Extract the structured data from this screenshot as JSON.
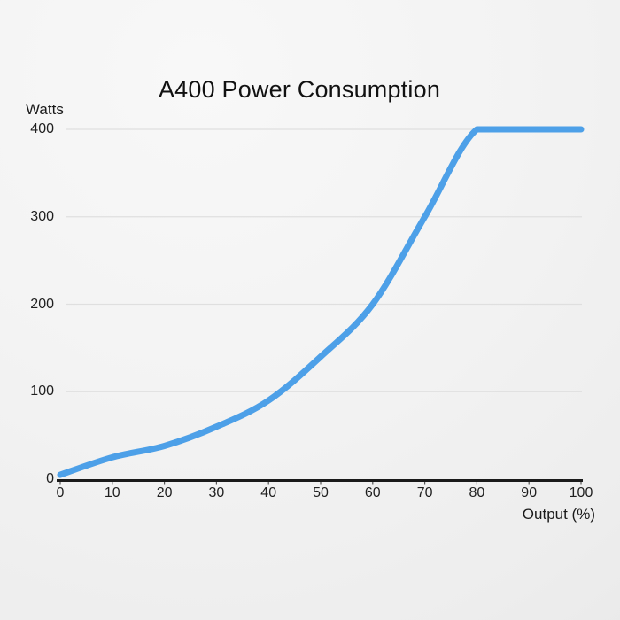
{
  "title": "A400 Power Consumption",
  "y_axis": {
    "unit_label": "Watts",
    "ticks": [
      0,
      100,
      200,
      300,
      400
    ],
    "max": 400
  },
  "x_axis": {
    "title": "Output (%)",
    "ticks": [
      0,
      10,
      20,
      30,
      40,
      50,
      60,
      70,
      80,
      90,
      100
    ],
    "max": 100
  },
  "colors": {
    "line": "#4da0e8",
    "grid": "#dfdfdf",
    "axis": "#1a1a1a",
    "text": "#1a1a1a"
  },
  "chart_data": {
    "type": "line",
    "title": "A400 Power Consumption",
    "xlabel": "Output (%)",
    "ylabel": "Watts",
    "x": [
      0,
      10,
      20,
      30,
      40,
      50,
      60,
      70,
      80,
      90,
      100
    ],
    "values": [
      5,
      25,
      38,
      60,
      90,
      140,
      200,
      300,
      400,
      400,
      400
    ],
    "xlim": [
      0,
      100
    ],
    "ylim": [
      0,
      400
    ],
    "grid": true,
    "legend": false,
    "line_width": 7
  }
}
